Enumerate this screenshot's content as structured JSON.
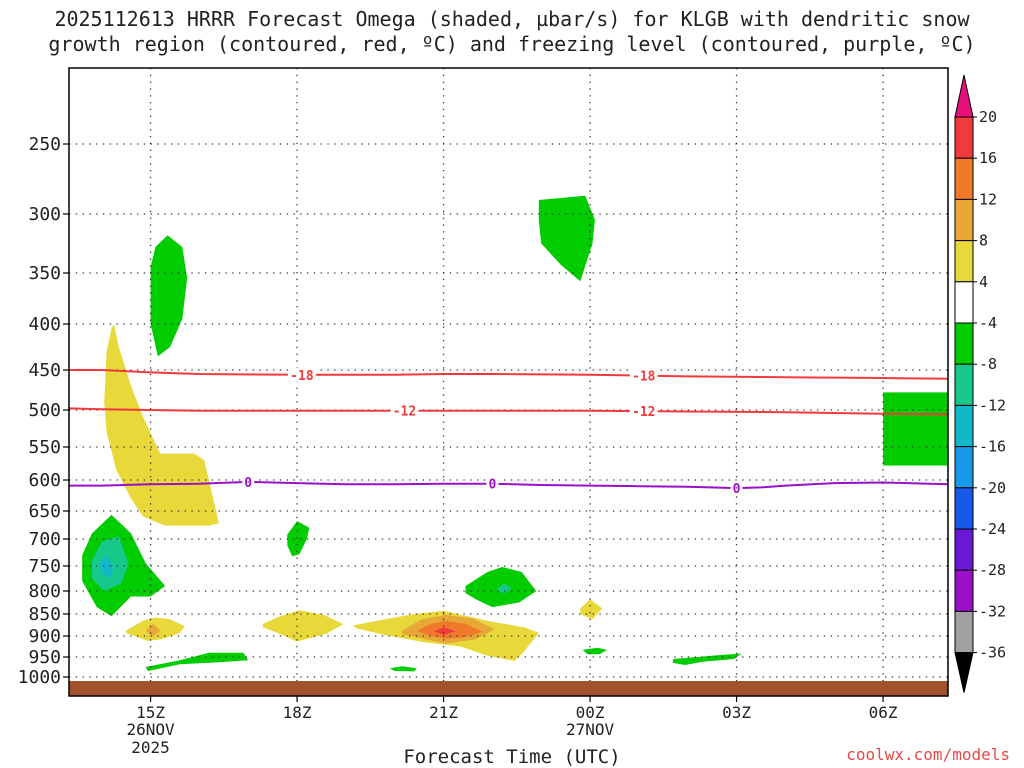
{
  "chart_data": {
    "type": "contour",
    "title_line1": "2025112613 HRRR Forecast Omega (shaded, µbar/s) for KLGB with dendritic snow",
    "title_line2": "growth region (contoured, red, ºC) and freezing level (contoured, purple, ºC)",
    "xlabel": "Forecast Time (UTC)",
    "credit": "coolwx.com/models",
    "x_range_hours": [
      13.33,
      31.33
    ],
    "y_range_mb": [
      200,
      1030
    ],
    "y_ticks": [
      250,
      300,
      350,
      400,
      450,
      500,
      550,
      600,
      650,
      700,
      750,
      800,
      850,
      900,
      950,
      1000
    ],
    "y_tick_labels": [
      "250",
      "300",
      "350",
      "400",
      "450",
      "500",
      "550",
      "600",
      "650",
      "700",
      "750",
      "800",
      "850",
      "900",
      "950",
      "1000"
    ],
    "x_ticks": [
      {
        "hour": 15,
        "label": "15Z",
        "sub1": "26NOV",
        "sub2": "2025"
      },
      {
        "hour": 18,
        "label": "18Z",
        "sub1": "",
        "sub2": ""
      },
      {
        "hour": 21,
        "label": "21Z",
        "sub1": "",
        "sub2": ""
      },
      {
        "hour": 24,
        "label": "00Z",
        "sub1": "27NOV",
        "sub2": ""
      },
      {
        "hour": 27,
        "label": "03Z",
        "sub1": "",
        "sub2": ""
      },
      {
        "hour": 30,
        "label": "06Z",
        "sub1": "",
        "sub2": ""
      }
    ],
    "colorbar": {
      "labels": [
        "20",
        "16",
        "12",
        "8",
        "4",
        "-4",
        "-8",
        "-12",
        "-16",
        "-20",
        "-24",
        "-28",
        "-32",
        "-36"
      ],
      "colors": [
        "#f03a3e",
        "#f07a2a",
        "#e8a838",
        "#e8d83a",
        "#ffffff",
        "#00cc00",
        "#18c88a",
        "#10b8c8",
        "#1898e8",
        "#1858e8",
        "#6a18d8",
        "#9a10c8",
        "#a0a0a0"
      ],
      "top_arrow_color": "#e8107a",
      "bottom_arrow_color": "#000000"
    },
    "ground_color": "#a0522d",
    "contour_lines": [
      {
        "name": "-18",
        "label": "-18",
        "color": "#f03a3e",
        "x": [
          13.33,
          14,
          15,
          16,
          18,
          20,
          21,
          22,
          24,
          26,
          28,
          30,
          31.33
        ],
        "y": [
          450,
          450,
          453,
          455,
          456,
          456,
          455,
          455,
          456,
          458,
          459,
          460,
          461
        ],
        "label_hours": [
          18.1,
          25.1
        ]
      },
      {
        "name": "-12",
        "label": "-12",
        "color": "#f03a3e",
        "x": [
          13.33,
          14,
          15,
          16,
          18,
          20,
          22,
          24,
          26,
          28,
          30,
          31.33
        ],
        "y": [
          498,
          499,
          500,
          501,
          501,
          501,
          501,
          501,
          502,
          503,
          505,
          506
        ],
        "label_hours": [
          20.2,
          25.1
        ]
      },
      {
        "name": "0",
        "label": "0",
        "color": "#9a10c8",
        "x": [
          13.33,
          14,
          15,
          16,
          17,
          18,
          19,
          20,
          21,
          22,
          23,
          24,
          25,
          26,
          27,
          27.5,
          28,
          29,
          30,
          31.33
        ],
        "y": [
          609,
          609,
          607,
          606,
          603,
          605,
          607,
          607,
          606,
          606,
          608,
          609,
          610,
          611,
          613,
          612,
          609,
          605,
          604,
          607
        ],
        "label_hours": [
          17,
          22,
          27
        ]
      }
    ],
    "shaded_regions": [
      {
        "name": "omega-pos-4-column",
        "level": "4",
        "color": "#e8d83a",
        "x": [
          14.1,
          14.2,
          14.25,
          14.35,
          14.6,
          14.85,
          15.1,
          15.2,
          15.9,
          16.1,
          16.4,
          16.2,
          15.8,
          15.3,
          14.85,
          14.6,
          14.3,
          14.1,
          14.05
        ],
        "y": [
          430,
          405,
          400,
          425,
          470,
          510,
          545,
          560,
          560,
          570,
          672,
          676,
          676,
          676,
          660,
          630,
          585,
          530,
          490
        ]
      },
      {
        "name": "omega-neg-4-upper-15z",
        "level": "-4",
        "color": "#00cc00",
        "x": [
          15.0,
          15.1,
          15.35,
          15.65,
          15.75,
          15.65,
          15.4,
          15.15,
          15.0
        ],
        "y": [
          345,
          328,
          318,
          328,
          355,
          395,
          425,
          435,
          400
        ]
      },
      {
        "name": "omega-neg-4-upper-00z",
        "level": "-4",
        "color": "#00cc00",
        "x": [
          22.95,
          23.9,
          24.1,
          24.05,
          23.8,
          23.4,
          23.0,
          22.95
        ],
        "y": [
          290,
          287,
          305,
          325,
          358,
          343,
          325,
          305
        ]
      },
      {
        "name": "omega-neg-4-right-edge",
        "level": "-4",
        "color": "#00cc00",
        "x": [
          30.0,
          31.33,
          31.33,
          30.0
        ],
        "y": [
          478,
          478,
          578,
          578
        ]
      },
      {
        "name": "omega-neg-4-lower-left",
        "level": "-4",
        "color": "#00cc00",
        "x": [
          13.6,
          13.8,
          14.2,
          14.6,
          14.9,
          15.3,
          15.0,
          14.6,
          14.2,
          13.9,
          13.6
        ],
        "y": [
          730,
          690,
          657,
          690,
          745,
          790,
          812,
          812,
          855,
          835,
          780
        ]
      },
      {
        "name": "omega-neg-8-lower-left",
        "level": "-8",
        "color": "#18c88a",
        "x": [
          13.8,
          14.0,
          14.35,
          14.55,
          14.4,
          14.05,
          13.8
        ],
        "y": [
          740,
          705,
          695,
          745,
          785,
          800,
          775
        ]
      },
      {
        "name": "omega-neg-12-lower-left",
        "level": "-12",
        "color": "#10b8c8",
        "x": [
          13.95,
          14.1,
          14.25,
          14.15,
          14.0
        ],
        "y": [
          745,
          730,
          755,
          775,
          765
        ]
      },
      {
        "name": "omega-neg-4-18z-small",
        "level": "-4",
        "color": "#00cc00",
        "x": [
          17.8,
          18.0,
          18.25,
          18.2,
          18.05,
          17.9,
          17.8
        ],
        "y": [
          692,
          668,
          680,
          700,
          728,
          732,
          712
        ]
      },
      {
        "name": "omega-neg-4-2130z",
        "level": "-4",
        "color": "#00cc00",
        "x": [
          21.45,
          21.9,
          22.2,
          22.6,
          22.9,
          22.55,
          22.0,
          21.7,
          21.45
        ],
        "y": [
          790,
          762,
          752,
          762,
          800,
          825,
          835,
          820,
          805
        ]
      },
      {
        "name": "omega-neg-8-2130z",
        "level": "-8",
        "color": "#18c88a",
        "x": [
          22.1,
          22.25,
          22.4,
          22.25,
          22.1
        ],
        "y": [
          795,
          785,
          795,
          805,
          800
        ]
      },
      {
        "name": "omega-pos-4-15z-low",
        "level": "4",
        "color": "#e8d83a",
        "x": [
          14.5,
          14.85,
          15.1,
          15.4,
          15.7,
          15.6,
          15.25,
          14.95,
          14.6,
          14.5
        ],
        "y": [
          888,
          865,
          858,
          862,
          878,
          893,
          907,
          912,
          897,
          893
        ]
      },
      {
        "name": "omega-pos-8-15z-low",
        "level": "8",
        "color": "#e8a838",
        "x": [
          14.9,
          15.05,
          15.2,
          15.05
        ],
        "y": [
          888,
          872,
          888,
          902
        ]
      },
      {
        "name": "omega-pos-4-18z-low",
        "level": "4",
        "color": "#e8d83a",
        "x": [
          17.3,
          17.65,
          18.05,
          18.55,
          18.95,
          18.6,
          18.0,
          17.6,
          17.3
        ],
        "y": [
          872,
          855,
          842,
          852,
          873,
          895,
          913,
          893,
          880
        ]
      },
      {
        "name": "omega-pos-4-21z-low",
        "level": "4",
        "color": "#e8d83a",
        "x": [
          19.15,
          19.8,
          20.4,
          21.0,
          21.4,
          22.0,
          22.65,
          22.95,
          22.8,
          22.6,
          22.45,
          21.9,
          21.35,
          20.6,
          20.2,
          19.8,
          19.2
        ],
        "y": [
          876,
          862,
          850,
          843,
          853,
          868,
          880,
          893,
          915,
          943,
          960,
          947,
          925,
          915,
          906,
          898,
          882
        ]
      },
      {
        "name": "omega-pos-8-21z-low",
        "level": "8",
        "color": "#e8a838",
        "x": [
          20.15,
          20.55,
          21.05,
          21.6,
          22.05,
          21.65,
          21.05,
          20.55,
          20.15
        ],
        "y": [
          888,
          862,
          852,
          860,
          885,
          908,
          918,
          906,
          895
        ]
      },
      {
        "name": "omega-pos-12-21z-low",
        "level": "12",
        "color": "#f07a2a",
        "x": [
          20.45,
          20.75,
          21.05,
          21.45,
          21.8,
          21.45,
          21.05,
          20.7
        ],
        "y": [
          888,
          872,
          866,
          872,
          890,
          903,
          907,
          899
        ]
      },
      {
        "name": "omega-pos-16-21z-low",
        "level": "16",
        "color": "#f03a3e",
        "x": [
          20.8,
          21.0,
          21.25,
          21.0
        ],
        "y": [
          889,
          880,
          889,
          897
        ]
      },
      {
        "name": "omega-pos-4-2330z",
        "level": "4",
        "color": "#e8d83a",
        "x": [
          23.8,
          24.0,
          24.25,
          24.05,
          23.8
        ],
        "y": [
          838,
          818,
          838,
          862,
          850
        ]
      },
      {
        "name": "omega-neg-4-1530z-low",
        "level": "-4",
        "color": "#00cc00",
        "x": [
          14.9,
          15.6,
          16.2,
          16.9,
          17.0,
          16.4,
          15.6,
          14.95
        ],
        "y": [
          975,
          958,
          940,
          940,
          958,
          963,
          968,
          985
        ]
      },
      {
        "name": "omega-neg-4-21z-tiny",
        "level": "-4",
        "color": "#00cc00",
        "x": [
          19.9,
          20.15,
          20.45,
          20.4,
          20.0
        ],
        "y": [
          978,
          973,
          978,
          986,
          985
        ]
      },
      {
        "name": "omega-neg-4-00z-tiny",
        "level": "-4",
        "color": "#00cc00",
        "x": [
          23.85,
          24.15,
          24.35,
          24.2,
          23.95
        ],
        "y": [
          933,
          928,
          933,
          943,
          943
        ]
      },
      {
        "name": "omega-neg-4-03z-low",
        "level": "-4",
        "color": "#00cc00",
        "x": [
          25.7,
          26.2,
          26.7,
          27.1,
          26.95,
          26.3,
          25.95,
          25.7
        ],
        "y": [
          955,
          950,
          945,
          942,
          955,
          962,
          970,
          965
        ]
      }
    ]
  }
}
